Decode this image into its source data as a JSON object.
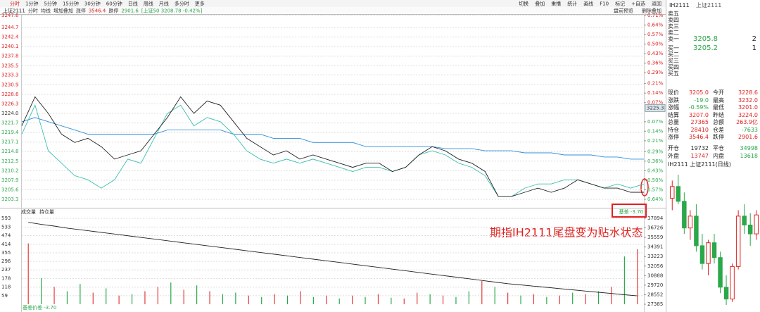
{
  "toolbar": {
    "periods": [
      "分时",
      "1分钟",
      "5分钟",
      "15分钟",
      "30分钟",
      "60分钟",
      "日线",
      "周线",
      "月线",
      "多分时",
      "更多"
    ],
    "actions": [
      "切换",
      "叠加",
      "重播",
      "统计",
      "画线",
      "F10",
      "标记",
      "+自选",
      "返回"
    ]
  },
  "info_bar": {
    "items": [
      "上证2111",
      "分时",
      "均线",
      "增加叠加",
      "涨停",
      "3546.4",
      "跌停",
      "2901.6",
      "[上证50 3208.78 -0.42%]"
    ],
    "right_items": [
      "盘前预览",
      "删除叠加"
    ]
  },
  "annotation": "期指IH2111尾盘变为贴水状态",
  "basis_label": "基差 -3.70",
  "bottom_label": "基差价差 -3.70",
  "chart_data": [
    {
      "type": "line",
      "reference_value": 3224,
      "price_tag": 3225.3,
      "ylim": [
        3203.3,
        3247.6
      ],
      "yticks": [
        3247.6,
        3244.7,
        3242.4,
        3240.1,
        3237.8,
        3235.5,
        3233.3,
        3230.9,
        3228.6,
        3226.3,
        {
          "value": 3224,
          "label": "3224.0"
        },
        3221.7,
        3219.4,
        3217.1,
        3214.8,
        3212.5,
        3210.2,
        3207.9,
        3205.6,
        3203.3
      ],
      "y2lim": [
        -0.64,
        0.71
      ],
      "y2ticks": [
        {
          "value": 0.71,
          "label": "0.71%"
        },
        {
          "value": 0.64,
          "label": "0.64%"
        },
        {
          "value": 0.57,
          "label": "0.57%"
        },
        {
          "value": 0.5,
          "label": "0.50%"
        },
        {
          "value": 0.43,
          "label": "0.43%"
        },
        {
          "value": 0.36,
          "label": "0.36%"
        },
        {
          "value": 0.29,
          "label": "0.29%"
        },
        {
          "value": 0.21,
          "label": "0.21%"
        },
        {
          "value": 0.14,
          "label": "0.14%"
        },
        {
          "value": 0.07,
          "label": "0.07%"
        },
        {
          "value": -0.07,
          "label": "0.07%"
        },
        {
          "value": -0.14,
          "label": "0.14%"
        },
        {
          "value": -0.21,
          "label": "0.21%"
        },
        {
          "value": -0.29,
          "label": "0.29%"
        },
        {
          "value": -0.36,
          "label": "0.36%"
        },
        {
          "value": -0.43,
          "label": "0.43%"
        },
        {
          "value": -0.5,
          "label": "0.50%"
        },
        {
          "value": -0.57,
          "label": "0.57%"
        },
        {
          "value": -0.64,
          "label": "0.64%"
        }
      ],
      "grid": true,
      "series": [
        {
          "color": "#2f8fd8",
          "values": [
            3222,
            3223,
            3222,
            3221,
            3220,
            3219,
            3219,
            3219,
            3219,
            3219,
            3219,
            3220,
            3220,
            3220,
            3220,
            3220,
            3219,
            3219,
            3219,
            3218,
            3218,
            3218,
            3217,
            3217,
            3217,
            3217,
            3216,
            3216,
            3216,
            3216,
            3216,
            3216,
            3215.5,
            3215.5,
            3215.5,
            3215,
            3215,
            3215,
            3214.5,
            3214.5,
            3214.5,
            3214,
            3214,
            3214,
            3213.5,
            3213.5,
            3213,
            3213
          ]
        },
        {
          "color": "#3bbfb0",
          "values": [
            3219,
            3226,
            3215,
            3212,
            3209,
            3208,
            3206,
            3208,
            3213,
            3212,
            3218,
            3224,
            3226,
            3221,
            3223,
            3222,
            3219,
            3215,
            3213,
            3212,
            3213,
            3212,
            3213,
            3212,
            3211,
            3210,
            3211,
            3211,
            3210,
            3211,
            3214,
            3215,
            3214,
            3212,
            3211,
            3209,
            3204,
            3204,
            3206,
            3207,
            3207,
            3208,
            3208,
            3207,
            3206,
            3207,
            3206,
            3207
          ]
        },
        {
          "color": "#222222",
          "values": [
            3221,
            3228,
            3224,
            3219,
            3217,
            3218,
            3216,
            3213,
            3214,
            3215,
            3219,
            3223,
            3228,
            3224,
            3227,
            3226,
            3222,
            3218,
            3216,
            3214,
            3215,
            3213,
            3214,
            3213,
            3212,
            3211,
            3212,
            3212,
            3210,
            3211,
            3214,
            3216,
            3215,
            3213,
            3212,
            3210,
            3204,
            3204,
            3205,
            3206,
            3205,
            3206,
            3208,
            3207,
            3206,
            3206,
            3205,
            3205
          ]
        }
      ]
    },
    {
      "type": "bar",
      "ylim": [
        0,
        593
      ],
      "yticks": [
        593,
        533,
        474,
        414,
        355,
        296,
        237,
        178,
        118,
        59
      ],
      "y2lim": [
        27385,
        37894
      ],
      "y2ticks": [
        37894,
        36726,
        35559,
        34391,
        33223,
        32056,
        30888,
        29720,
        28552,
        27385
      ],
      "grid": true,
      "series": [
        {
          "name": "成交量",
          "values": [
            420,
            180,
            120,
            90,
            140,
            80,
            110,
            60,
            70,
            90,
            120,
            150,
            100,
            130,
            90,
            70,
            80,
            60,
            50,
            70,
            60,
            90,
            50,
            60,
            40,
            60,
            50,
            70,
            45,
            40,
            80,
            70,
            60,
            50,
            90,
            160,
            120,
            80,
            60,
            70,
            50,
            60,
            80,
            70,
            90,
            120,
            330,
            380
          ],
          "colors": [
            "#e23b3b",
            "#2aa84a",
            "#e23b3b",
            "#2aa84a",
            "#2aa84a",
            "#e23b3b",
            "#2aa84a",
            "#e23b3b",
            "#2aa84a",
            "#e23b3b",
            "#e23b3b",
            "#2aa84a",
            "#e23b3b",
            "#2aa84a",
            "#e23b3b",
            "#2aa84a",
            "#2aa84a",
            "#e23b3b",
            "#2aa84a",
            "#e23b3b",
            "#2aa84a",
            "#e23b3b",
            "#2aa84a",
            "#e23b3b",
            "#2aa84a",
            "#e23b3b",
            "#2aa84a",
            "#e23b3b",
            "#2aa84a",
            "#e23b3b",
            "#e23b3b",
            "#2aa84a",
            "#e23b3b",
            "#2aa84a",
            "#2aa84a",
            "#e23b3b",
            "#2aa84a",
            "#e23b3b",
            "#2aa84a",
            "#e23b3b",
            "#2aa84a",
            "#e23b3b",
            "#2aa84a",
            "#e23b3b",
            "#2aa84a",
            "#e23b3b",
            "#2aa84a",
            "#e23b3b"
          ]
        },
        {
          "name": "持仓量",
          "axis": "y2",
          "color": "#222222",
          "values": [
            37400,
            37150,
            36950,
            36700,
            36500,
            36300,
            36100,
            35900,
            35700,
            35500,
            35300,
            35100,
            34900,
            34700,
            34500,
            34300,
            34100,
            33900,
            33700,
            33500,
            33300,
            33100,
            32900,
            32700,
            32500,
            32300,
            32100,
            31900,
            31700,
            31500,
            31300,
            31100,
            30900,
            30700,
            30500,
            30300,
            30100,
            29900,
            29750,
            29600,
            29450,
            29300,
            29150,
            29000,
            28850,
            28700,
            28550,
            28410
          ]
        }
      ]
    }
  ],
  "side_panel": {
    "header": [
      "IH2111",
      "上证2111"
    ],
    "order_book": [
      {
        "label": "卖五"
      },
      {
        "label": "卖四"
      },
      {
        "label": "卖三"
      },
      {
        "label": "卖二"
      },
      {
        "label": "卖一",
        "price": "3205.8",
        "qty": "2"
      },
      {
        "label": "买一",
        "price": "3205.2",
        "qty": "1"
      },
      {
        "label": "买二"
      },
      {
        "label": "买三"
      },
      {
        "label": "买四"
      },
      {
        "label": "买五"
      }
    ],
    "stats": [
      [
        "现价",
        "3205.0",
        "今开",
        "3228.6"
      ],
      [
        "涨跌",
        "-19.0",
        "最高",
        "3232.0"
      ],
      [
        "涨幅",
        "-0.59%",
        "最低",
        "3201.0"
      ],
      [
        "结算",
        "3207.0",
        "昨结",
        "3224.0"
      ],
      [
        "总量",
        "27365",
        "总额",
        "263.9亿"
      ],
      [
        "持仓",
        "28410",
        "仓差",
        "-7633"
      ],
      [
        "涨停",
        "3546.4",
        "跌停",
        "2901.6"
      ]
    ],
    "flow": [
      [
        "开仓",
        "19732",
        "平仓",
        "34998"
      ],
      [
        "外盘",
        "13747",
        "内盘",
        "13618"
      ]
    ],
    "daily_title": "IH2111 上证2111(日线)",
    "daily": [
      {
        "open": 3260,
        "high": 3290,
        "low": 3240,
        "close": 3280
      },
      {
        "open": 3280,
        "high": 3300,
        "low": 3250,
        "close": 3255
      },
      {
        "open": 3255,
        "high": 3270,
        "low": 3200,
        "close": 3210
      },
      {
        "open": 3210,
        "high": 3240,
        "low": 3190,
        "close": 3230
      },
      {
        "open": 3230,
        "high": 3250,
        "low": 3170,
        "close": 3180
      },
      {
        "open": 3180,
        "high": 3200,
        "low": 3140,
        "close": 3150
      },
      {
        "open": 3150,
        "high": 3190,
        "low": 3130,
        "close": 3185
      },
      {
        "open": 3185,
        "high": 3200,
        "low": 3150,
        "close": 3160
      },
      {
        "open": 3160,
        "high": 3170,
        "low": 3100,
        "close": 3110
      },
      {
        "open": 3110,
        "high": 3130,
        "low": 3080,
        "close": 3090
      },
      {
        "open": 3090,
        "high": 3150,
        "low": 3085,
        "close": 3145
      },
      {
        "open": 3145,
        "high": 3240,
        "low": 3140,
        "close": 3230
      },
      {
        "open": 3230,
        "high": 3250,
        "low": 3200,
        "close": 3215
      },
      {
        "open": 3215,
        "high": 3235,
        "low": 3180,
        "close": 3200
      },
      {
        "open": 3200,
        "high": 3240,
        "low": 3190,
        "close": 3232
      }
    ]
  }
}
